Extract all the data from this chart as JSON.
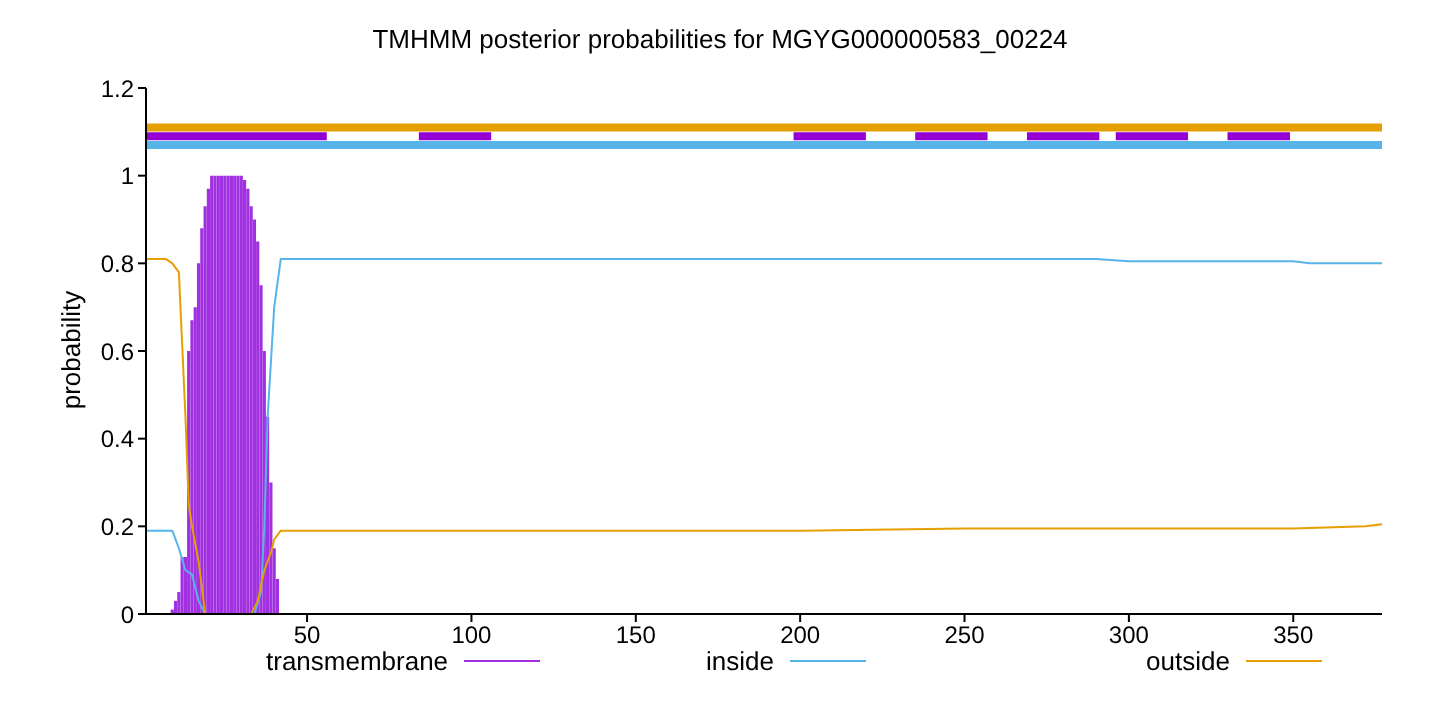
{
  "chart_data": {
    "type": "line",
    "title": "TMHMM posterior probabilities for MGYG000000583_00224",
    "ylabel": "probability",
    "xlim": [
      1,
      377
    ],
    "xticks": [
      50,
      100,
      150,
      200,
      250,
      300,
      350
    ],
    "ylim": [
      0,
      1.2
    ],
    "yticks": [
      0,
      0.2,
      0.4,
      0.6,
      0.8,
      1,
      1.2
    ],
    "grid": false,
    "legend": "bottom",
    "series": [
      {
        "name": "transmembrane",
        "type": "bar",
        "color": "#a030e0",
        "x": [
          9,
          10,
          11,
          12,
          13,
          14,
          15,
          16,
          17,
          18,
          19,
          20,
          21,
          22,
          23,
          24,
          25,
          26,
          27,
          28,
          29,
          30,
          31,
          32,
          33,
          34,
          35,
          36,
          37,
          38,
          39,
          40,
          41
        ],
        "values": [
          0.01,
          0.03,
          0.05,
          0.13,
          0.13,
          0.6,
          0.67,
          0.7,
          0.8,
          0.88,
          0.93,
          0.97,
          1,
          1,
          1,
          1,
          1,
          1,
          1,
          1,
          1,
          1,
          0.99,
          0.97,
          0.93,
          0.9,
          0.85,
          0.75,
          0.6,
          0.45,
          0.3,
          0.15,
          0.08
        ]
      },
      {
        "name": "inside",
        "color": "#56b4e9",
        "x": [
          1,
          9,
          11,
          13,
          15,
          17,
          19,
          34,
          36,
          37,
          38,
          40,
          42,
          200,
          290,
          300,
          350,
          355,
          377
        ],
        "values": [
          0.19,
          0.19,
          0.15,
          0.1,
          0.09,
          0.03,
          0,
          0,
          0.05,
          0.2,
          0.45,
          0.7,
          0.81,
          0.81,
          0.81,
          0.805,
          0.805,
          0.8,
          0.8
        ]
      },
      {
        "name": "outside",
        "color": "#e69f00",
        "x": [
          1,
          7,
          9,
          11,
          13,
          14,
          15,
          17,
          19,
          33,
          35,
          37,
          39,
          40,
          42,
          200,
          250,
          350,
          372,
          377
        ],
        "values": [
          0.81,
          0.81,
          0.8,
          0.78,
          0.45,
          0.25,
          0.2,
          0.12,
          0,
          0,
          0.03,
          0.1,
          0.14,
          0.17,
          0.19,
          0.19,
          0.195,
          0.195,
          0.2,
          0.205
        ]
      },
      {
        "type": "line",
        "color": "#e69f00",
        "x": [
          1,
          377
        ],
        "values": [
          1.11,
          1.11
        ]
      },
      {
        "type": "line",
        "color": "#56b4e9",
        "x": [
          1,
          377
        ],
        "values": [
          1.07,
          1.07
        ]
      },
      {
        "type": "line",
        "color": "#9400d3",
        "x": [
          1,
          56
        ],
        "values": [
          1.09,
          1.09
        ]
      },
      {
        "type": "line",
        "color": "#9400d3",
        "x": [
          84,
          106
        ],
        "values": [
          1.09,
          1.09
        ]
      },
      {
        "type": "line",
        "color": "#9400d3",
        "x": [
          198,
          220
        ],
        "values": [
          1.09,
          1.09
        ]
      },
      {
        "type": "line",
        "color": "#9400d3",
        "x": [
          235,
          257
        ],
        "values": [
          1.09,
          1.09
        ]
      },
      {
        "type": "line",
        "color": "#9400d3",
        "x": [
          269,
          291
        ],
        "values": [
          1.09,
          1.09
        ]
      },
      {
        "type": "line",
        "color": "#9400d3",
        "x": [
          296,
          318
        ],
        "values": [
          1.09,
          1.09
        ]
      },
      {
        "type": "line",
        "color": "#9400d3",
        "x": [
          330,
          349
        ],
        "values": [
          1.09,
          1.09
        ]
      }
    ]
  }
}
